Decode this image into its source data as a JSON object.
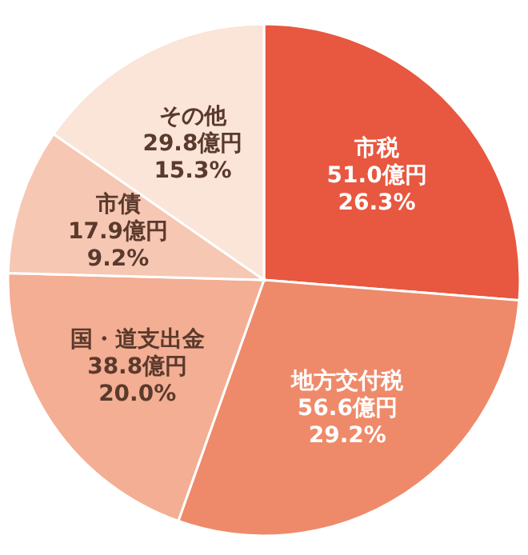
{
  "chart_data": {
    "type": "pie",
    "categories": [
      "市税",
      "地方交付税",
      "国・道支出金",
      "市債",
      "その他"
    ],
    "values": [
      51.0,
      56.6,
      38.8,
      17.9,
      29.8
    ],
    "colors": [
      "#e8573f",
      "#ee8a6a",
      "#f3ae93",
      "#f6c7b3",
      "#fbe4d8"
    ],
    "value_labels": [
      "51.0億円\n26.3%",
      "56.6億円\n29.2%",
      "38.8億円\n20.0%",
      "17.9億円\n9.2%",
      "29.8億円\n15.3%"
    ]
  }
}
